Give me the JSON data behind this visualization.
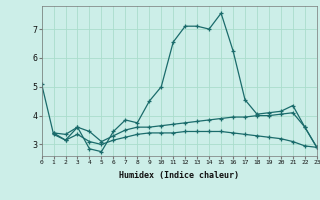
{
  "xlabel": "Humidex (Indice chaleur)",
  "xlim": [
    0,
    23
  ],
  "ylim": [
    2.6,
    7.8
  ],
  "yticks": [
    3,
    4,
    5,
    6,
    7
  ],
  "xticks": [
    0,
    1,
    2,
    3,
    4,
    5,
    6,
    7,
    8,
    9,
    10,
    11,
    12,
    13,
    14,
    15,
    16,
    17,
    18,
    19,
    20,
    21,
    22,
    23
  ],
  "bg_color": "#cceee8",
  "grid_color": "#aaddcc",
  "line_color": "#1a6b6b",
  "series": [
    {
      "x": [
        0,
        1,
        2,
        3,
        4,
        5,
        6,
        7,
        8,
        9,
        10,
        11,
        12,
        13,
        14,
        15,
        16,
        17,
        18,
        19,
        20,
        21,
        22,
        23
      ],
      "y": [
        5.1,
        3.35,
        3.15,
        3.6,
        2.85,
        2.75,
        3.45,
        3.85,
        3.75,
        4.5,
        5.0,
        6.55,
        7.1,
        7.1,
        7.0,
        7.55,
        6.25,
        4.55,
        4.05,
        4.1,
        4.15,
        4.35,
        3.6,
        2.9
      ]
    },
    {
      "x": [
        1,
        2,
        3,
        4,
        5,
        6,
        7,
        8,
        9,
        10,
        11,
        12,
        13,
        14,
        15,
        16,
        17,
        18,
        19,
        20,
        21,
        22,
        23
      ],
      "y": [
        3.4,
        3.35,
        3.6,
        3.45,
        3.1,
        3.3,
        3.5,
        3.6,
        3.6,
        3.65,
        3.7,
        3.75,
        3.8,
        3.85,
        3.9,
        3.95,
        3.95,
        4.0,
        4.0,
        4.05,
        4.1,
        3.6,
        2.9
      ]
    },
    {
      "x": [
        1,
        2,
        3,
        4,
        5,
        6,
        7,
        8,
        9,
        10,
        11,
        12,
        13,
        14,
        15,
        16,
        17,
        18,
        19,
        20,
        21,
        22,
        23
      ],
      "y": [
        3.4,
        3.15,
        3.35,
        3.1,
        3.0,
        3.15,
        3.25,
        3.35,
        3.4,
        3.4,
        3.4,
        3.45,
        3.45,
        3.45,
        3.45,
        3.4,
        3.35,
        3.3,
        3.25,
        3.2,
        3.1,
        2.95,
        2.9
      ]
    }
  ]
}
